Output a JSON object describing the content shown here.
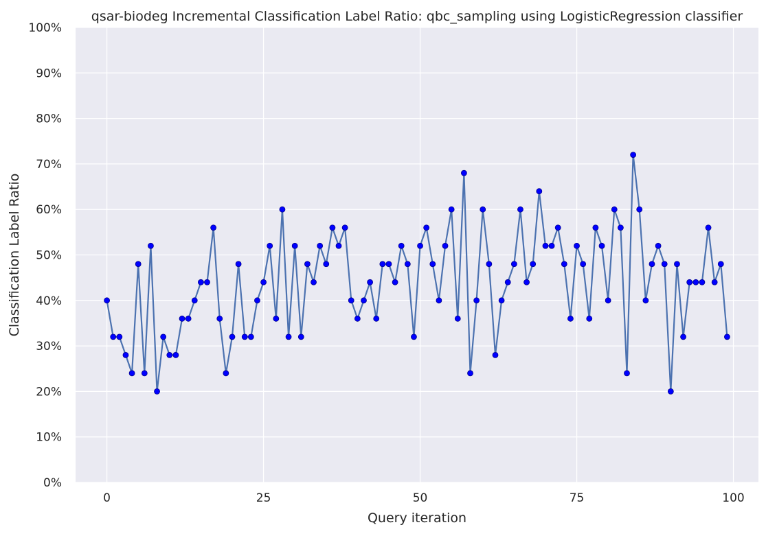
{
  "chart_data": {
    "type": "line",
    "title": "qsar-biodeg Incremental Classification Label Ratio: qbc_sampling using LogisticRegression classifier",
    "xlabel": "Query iteration",
    "ylabel": "Classification Label Ratio",
    "xlim": [
      -5,
      104
    ],
    "ylim": [
      0,
      1
    ],
    "x_ticks": [
      0,
      25,
      50,
      75,
      100
    ],
    "x_tick_labels": [
      "0",
      "25",
      "50",
      "75",
      "100"
    ],
    "y_ticks": [
      0,
      0.1,
      0.2,
      0.3,
      0.4,
      0.5,
      0.6,
      0.7,
      0.8,
      0.9,
      1.0
    ],
    "y_tick_labels": [
      "0%",
      "10%",
      "20%",
      "30%",
      "40%",
      "50%",
      "60%",
      "70%",
      "80%",
      "90%",
      "100%"
    ],
    "grid": true,
    "background_color": "#eaeaf2",
    "grid_color": "#ffffff",
    "line_color": "#4c72b0",
    "marker_color": "#0000ff",
    "series": [
      {
        "x": [
          0,
          1,
          2,
          3,
          4,
          5,
          6,
          7,
          8,
          9,
          10,
          11,
          12,
          13,
          14,
          15,
          16,
          17,
          18,
          19,
          20,
          21,
          22,
          23,
          24,
          25,
          26,
          27,
          28,
          29,
          30,
          31,
          32,
          33,
          34,
          35,
          36,
          37,
          38,
          39,
          40,
          41,
          42,
          43,
          44,
          45,
          46,
          47,
          48,
          49,
          50,
          51,
          52,
          53,
          54,
          55,
          56,
          57,
          58,
          59,
          60,
          61,
          62,
          63,
          64,
          65,
          66,
          67,
          68,
          69,
          70,
          71,
          72,
          73,
          74,
          75,
          76,
          77,
          78,
          79,
          80,
          81,
          82,
          83,
          84,
          85,
          86,
          87,
          88,
          89,
          90,
          91,
          92,
          93,
          94,
          95,
          96,
          97,
          98,
          99
        ],
        "values": [
          0.4,
          0.32,
          0.32,
          0.28,
          0.24,
          0.48,
          0.24,
          0.52,
          0.2,
          0.32,
          0.28,
          0.28,
          0.36,
          0.36,
          0.4,
          0.44,
          0.44,
          0.56,
          0.36,
          0.24,
          0.32,
          0.48,
          0.32,
          0.32,
          0.4,
          0.44,
          0.52,
          0.36,
          0.6,
          0.32,
          0.52,
          0.32,
          0.48,
          0.44,
          0.52,
          0.48,
          0.56,
          0.52,
          0.56,
          0.4,
          0.36,
          0.4,
          0.44,
          0.36,
          0.48,
          0.48,
          0.44,
          0.52,
          0.48,
          0.32,
          0.52,
          0.56,
          0.48,
          0.4,
          0.52,
          0.6,
          0.36,
          0.68,
          0.24,
          0.4,
          0.6,
          0.48,
          0.28,
          0.4,
          0.44,
          0.48,
          0.6,
          0.44,
          0.48,
          0.64,
          0.52,
          0.52,
          0.56,
          0.48,
          0.36,
          0.52,
          0.48,
          0.36,
          0.56,
          0.52,
          0.4,
          0.6,
          0.56,
          0.24,
          0.72,
          0.6,
          0.4,
          0.48,
          0.52,
          0.48,
          0.2,
          0.48,
          0.32,
          0.44,
          0.44,
          0.44,
          0.56,
          0.44,
          0.48,
          0.32
        ]
      }
    ]
  }
}
